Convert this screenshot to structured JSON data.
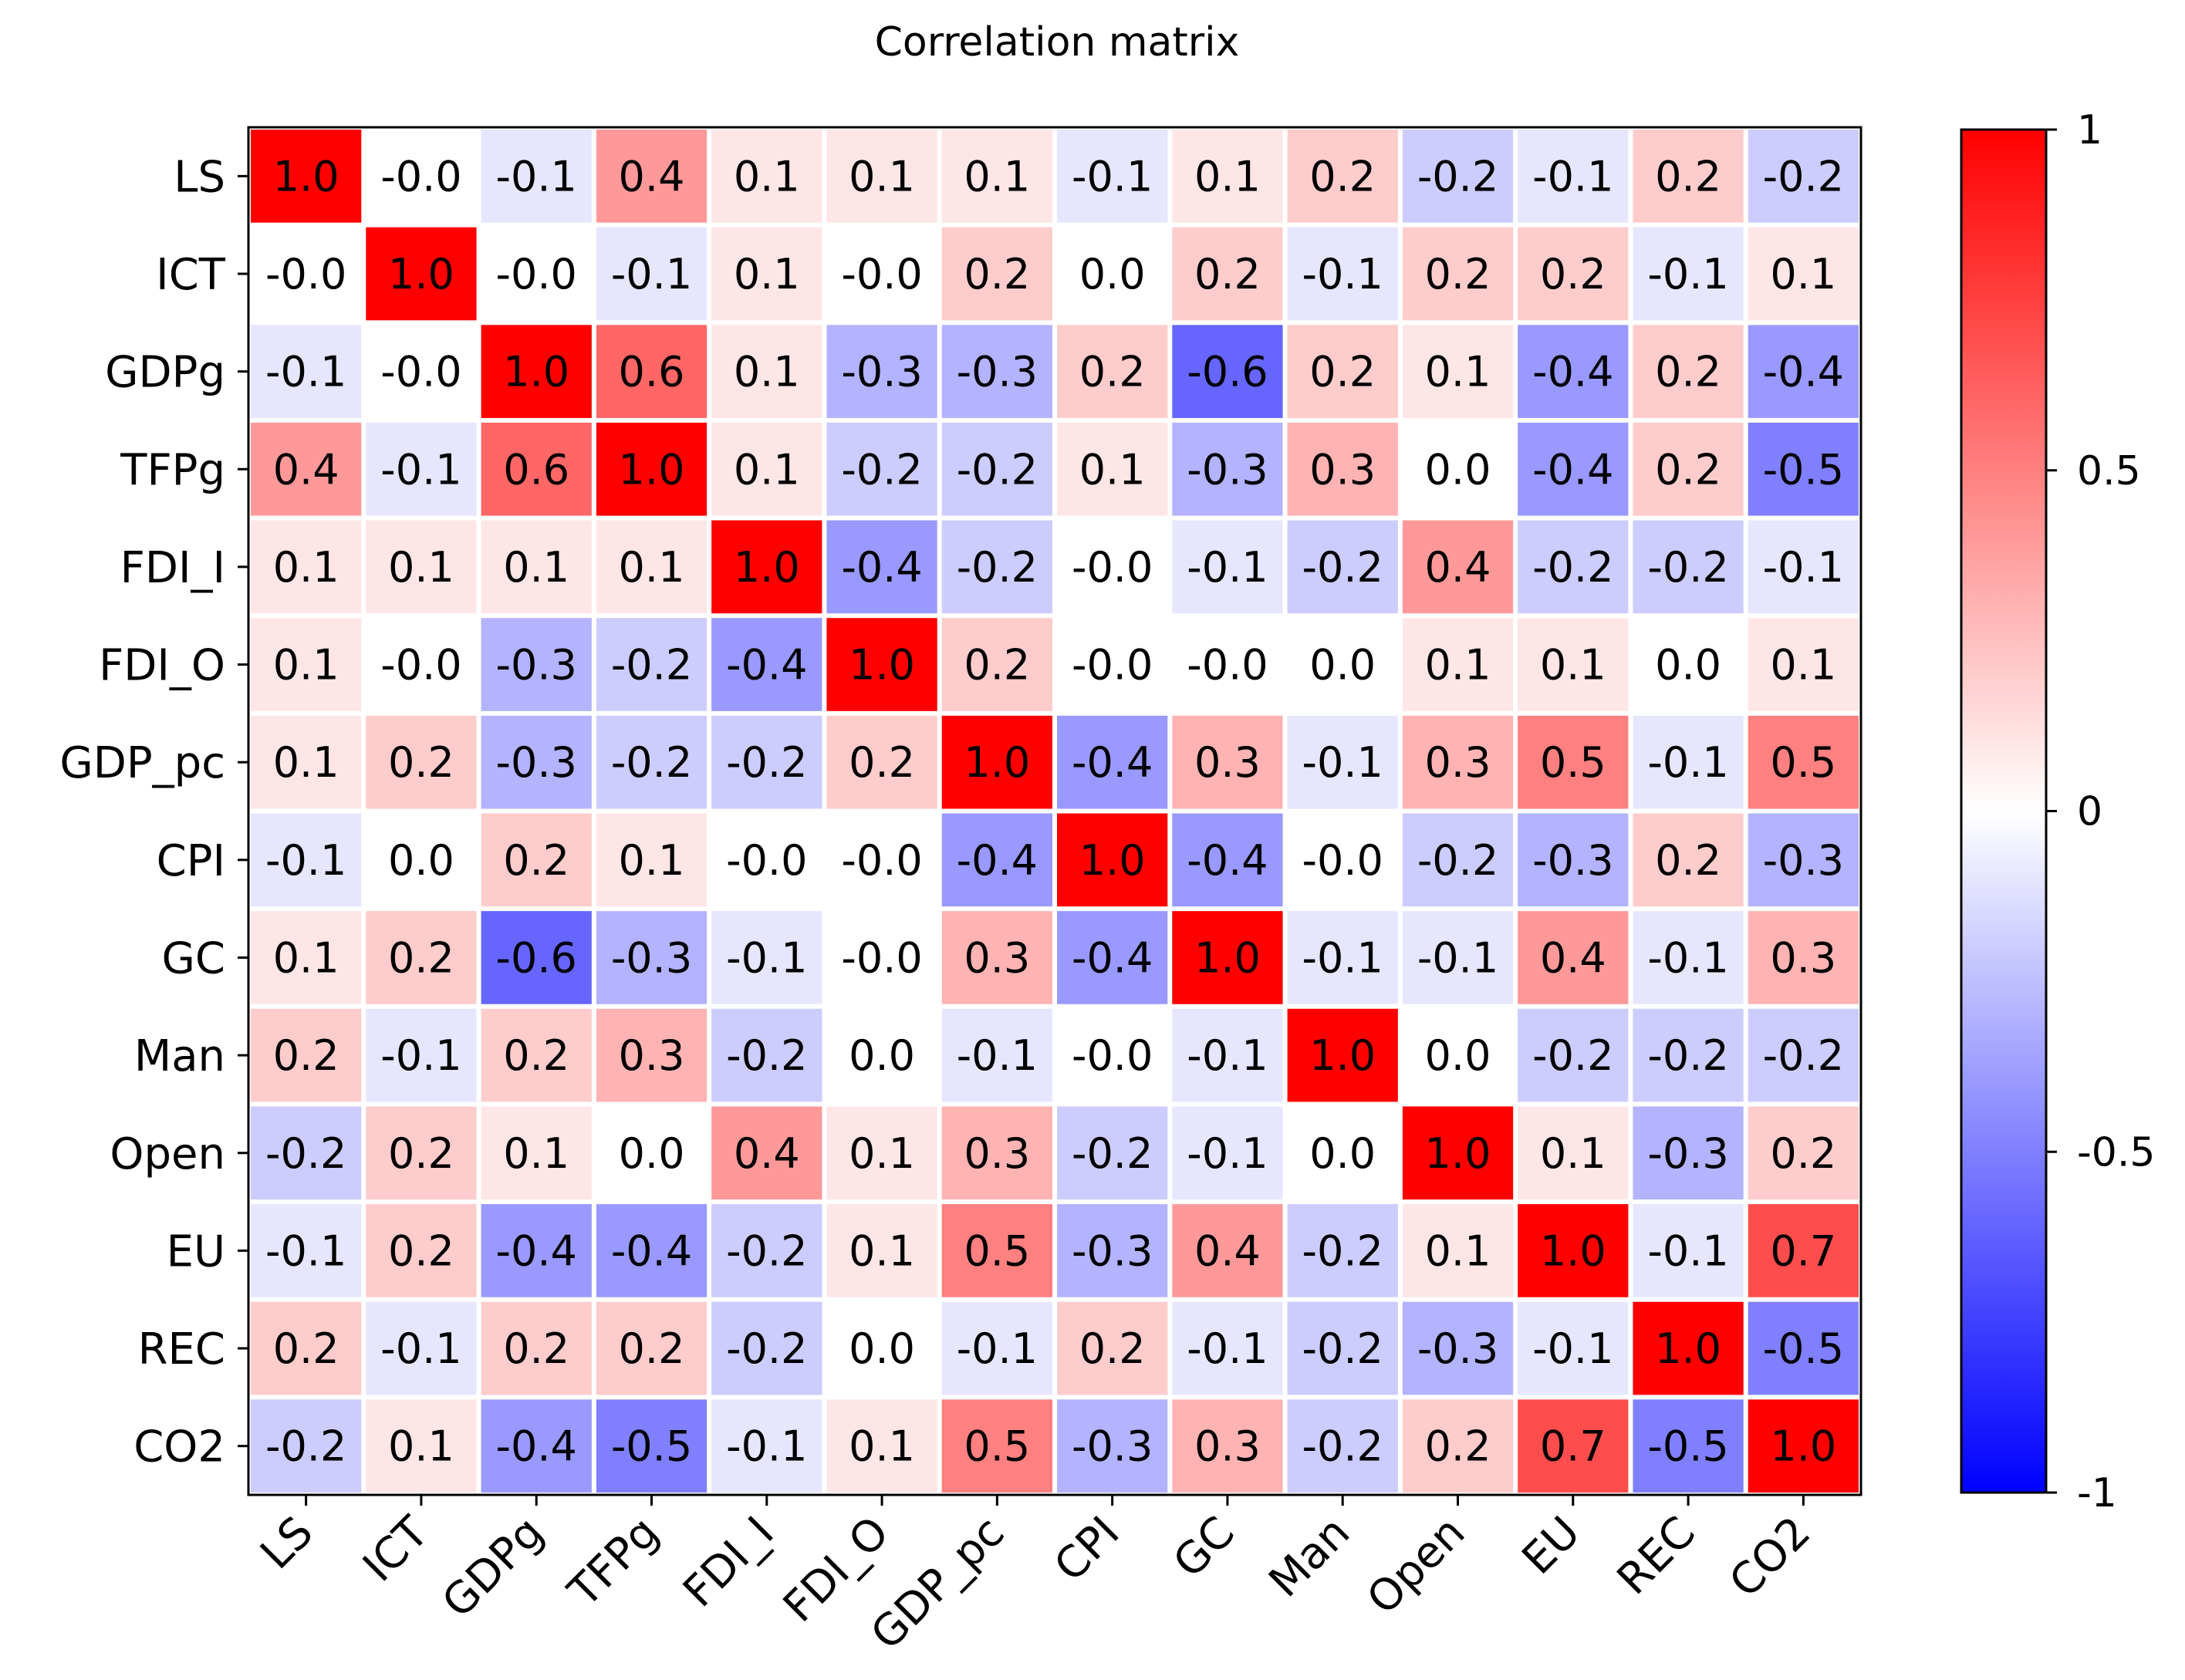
{
  "chart_data": {
    "type": "heatmap",
    "title": "Correlation matrix",
    "variables": [
      "LS",
      "ICT",
      "GDPg",
      "TFPg",
      "FDI_I",
      "FDI_O",
      "GDP_pc",
      "CPI",
      "GC",
      "Man",
      "Open",
      "EU",
      "REC",
      "CO2"
    ],
    "matrix": [
      [
        1.0,
        -0.0,
        -0.1,
        0.4,
        0.1,
        0.1,
        0.1,
        -0.1,
        0.1,
        0.2,
        -0.2,
        -0.1,
        0.2,
        -0.2
      ],
      [
        -0.0,
        1.0,
        -0.0,
        -0.1,
        0.1,
        -0.0,
        0.2,
        0.0,
        0.2,
        -0.1,
        0.2,
        0.2,
        -0.1,
        0.1
      ],
      [
        -0.1,
        -0.0,
        1.0,
        0.6,
        0.1,
        -0.3,
        -0.3,
        0.2,
        -0.6,
        0.2,
        0.1,
        -0.4,
        0.2,
        -0.4
      ],
      [
        0.4,
        -0.1,
        0.6,
        1.0,
        0.1,
        -0.2,
        -0.2,
        0.1,
        -0.3,
        0.3,
        0.0,
        -0.4,
        0.2,
        -0.5
      ],
      [
        0.1,
        0.1,
        0.1,
        0.1,
        1.0,
        -0.4,
        -0.2,
        -0.0,
        -0.1,
        -0.2,
        0.4,
        -0.2,
        -0.2,
        -0.1
      ],
      [
        0.1,
        -0.0,
        -0.3,
        -0.2,
        -0.4,
        1.0,
        0.2,
        -0.0,
        -0.0,
        0.0,
        0.1,
        0.1,
        0.0,
        0.1
      ],
      [
        0.1,
        0.2,
        -0.3,
        -0.2,
        -0.2,
        0.2,
        1.0,
        -0.4,
        0.3,
        -0.1,
        0.3,
        0.5,
        -0.1,
        0.5
      ],
      [
        -0.1,
        0.0,
        0.2,
        0.1,
        -0.0,
        -0.0,
        -0.4,
        1.0,
        -0.4,
        -0.0,
        -0.2,
        -0.3,
        0.2,
        -0.3
      ],
      [
        0.1,
        0.2,
        -0.6,
        -0.3,
        -0.1,
        -0.0,
        0.3,
        -0.4,
        1.0,
        -0.1,
        -0.1,
        0.4,
        -0.1,
        0.3
      ],
      [
        0.2,
        -0.1,
        0.2,
        0.3,
        -0.2,
        0.0,
        -0.1,
        -0.0,
        -0.1,
        1.0,
        0.0,
        -0.2,
        -0.2,
        -0.2
      ],
      [
        -0.2,
        0.2,
        0.1,
        0.0,
        0.4,
        0.1,
        0.3,
        -0.2,
        -0.1,
        0.0,
        1.0,
        0.1,
        -0.3,
        0.2
      ],
      [
        -0.1,
        0.2,
        -0.4,
        -0.4,
        -0.2,
        0.1,
        0.5,
        -0.3,
        0.4,
        -0.2,
        0.1,
        1.0,
        -0.1,
        0.7
      ],
      [
        0.2,
        -0.1,
        0.2,
        0.2,
        -0.2,
        0.0,
        -0.1,
        0.2,
        -0.1,
        -0.2,
        -0.3,
        -0.1,
        1.0,
        -0.5
      ],
      [
        -0.2,
        0.1,
        -0.4,
        -0.5,
        -0.1,
        0.1,
        0.5,
        -0.3,
        0.3,
        -0.2,
        0.2,
        0.7,
        -0.5,
        1.0
      ]
    ],
    "colormap": {
      "low": "#0000ff",
      "mid": "#ffffff",
      "high": "#ff0000"
    },
    "vmin": -1,
    "vmax": 1,
    "colorbar_ticks": [
      1,
      0.5,
      0,
      -0.5,
      -1
    ]
  }
}
